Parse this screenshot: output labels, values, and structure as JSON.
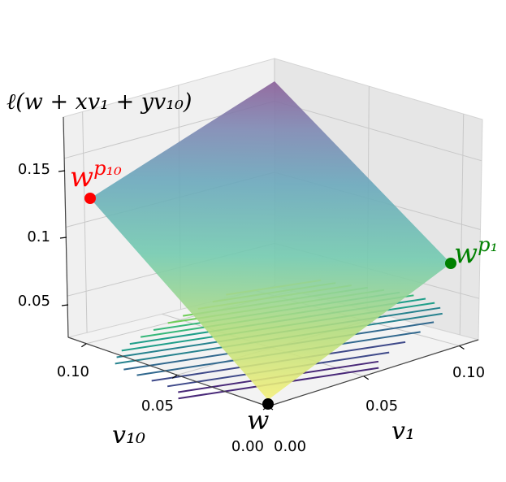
{
  "chart_data": {
    "type": "surface3d",
    "zlabel": "ℓ(w + xv₁ + yv₁₀)",
    "xlabel": "v₁",
    "ylabel": "v₁₀",
    "x_ticks": [
      "0.00",
      "0.05",
      "0.10"
    ],
    "y_ticks": [
      "0.00",
      "0.05",
      "0.10"
    ],
    "z_ticks": [
      "0.05",
      "0.1",
      "0.15"
    ],
    "xlim": [
      0,
      0.11
    ],
    "ylim": [
      0,
      0.11
    ],
    "zlim": [
      0.02,
      0.18
    ],
    "grid": true,
    "colormap": "viridis",
    "surface_corners": {
      "w_at_origin": 0.01,
      "at_x_0.10_y_0": 0.075,
      "at_x_0_y_0.10": 0.12,
      "at_x_0.10_y_0.10": 0.175
    },
    "contour_levels": 17,
    "points": [
      {
        "label_base": "w",
        "label_sup": "",
        "x": 0.0,
        "y": 0.0,
        "color": "#000000"
      },
      {
        "label_base": "w",
        "label_sup": "p₁",
        "x": 0.1,
        "y": 0.0,
        "color": "#008000"
      },
      {
        "label_base": "w",
        "label_sup": "p₁₀",
        "x": 0.0,
        "y": 0.1,
        "color": "#ff0000"
      }
    ]
  }
}
